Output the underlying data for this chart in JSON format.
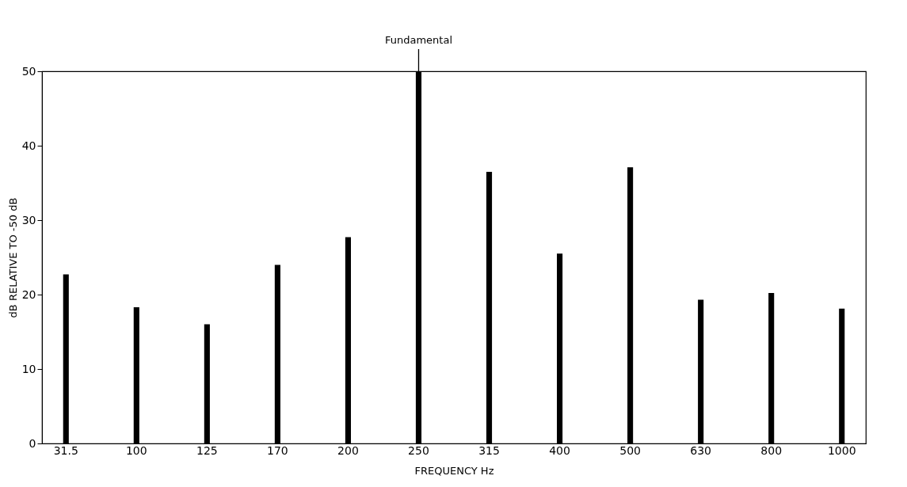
{
  "chart_data": {
    "type": "bar",
    "xlabel": "FREQUENCY  Hz",
    "ylabel": "dB RELATIVE  TO -50 dB",
    "categories": [
      "31.5",
      "100",
      "125",
      "170",
      "200",
      "250",
      "315",
      "400",
      "500",
      "630",
      "800",
      "1000"
    ],
    "values": [
      22.7,
      18.3,
      16.0,
      24.0,
      27.7,
      50,
      36.5,
      25.5,
      37.1,
      19.3,
      20.2,
      18.1
    ],
    "color": "#000000",
    "ylim": [
      0,
      50
    ],
    "yticks": [
      0,
      10,
      20,
      30,
      40,
      50
    ],
    "grid": false,
    "annotations": [
      {
        "text": "Fundamental",
        "x": "250",
        "y": 50
      }
    ]
  }
}
